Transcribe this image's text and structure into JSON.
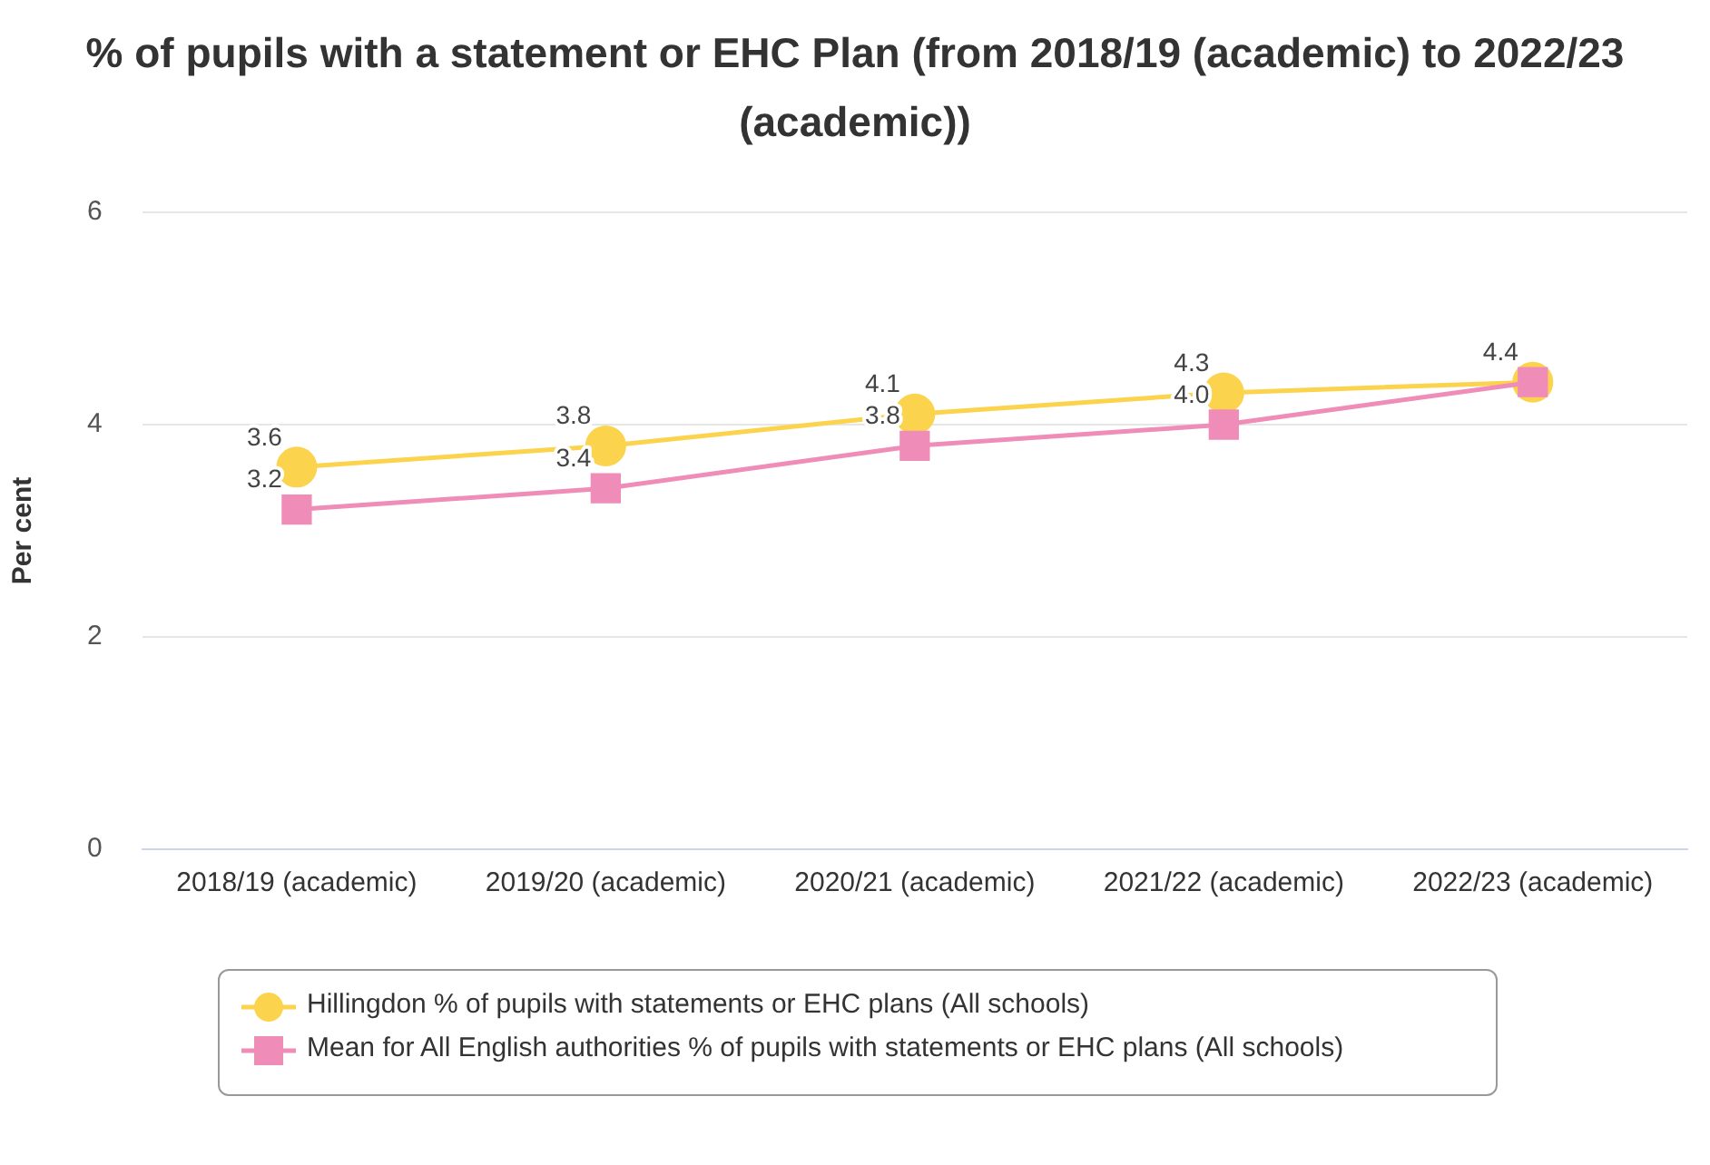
{
  "chart_data": {
    "type": "line",
    "title": "% of pupils with a statement or EHC Plan (from 2018/19 (academic) to 2022/23 (academic))",
    "ylabel": "Per cent",
    "categories": [
      "2018/19 (academic)",
      "2019/20 (academic)",
      "2020/21 (academic)",
      "2021/22 (academic)",
      "2022/23 (academic)"
    ],
    "series": [
      {
        "name": "Hillingdon % of pupils with statements or EHC plans (All schools)",
        "color": "#fcd34d",
        "marker": "circle",
        "values": [
          3.6,
          3.8,
          4.1,
          4.3,
          4.4
        ],
        "value_labels": [
          "3.6",
          "3.8",
          "4.1",
          "4.3",
          "4.4"
        ]
      },
      {
        "name": "Mean for All English authorities % of pupils with statements or EHC plans (All schools)",
        "color": "#f08cb8",
        "marker": "square",
        "values": [
          3.2,
          3.4,
          3.8,
          4.0,
          4.4
        ],
        "value_labels": [
          "3.2",
          "3.4",
          "3.8",
          "4.0",
          null
        ]
      }
    ],
    "ylim": [
      0,
      6
    ],
    "yticks": [
      0,
      2,
      4,
      6
    ],
    "grid": "y",
    "legend": "bottom",
    "line_style": "solid"
  }
}
